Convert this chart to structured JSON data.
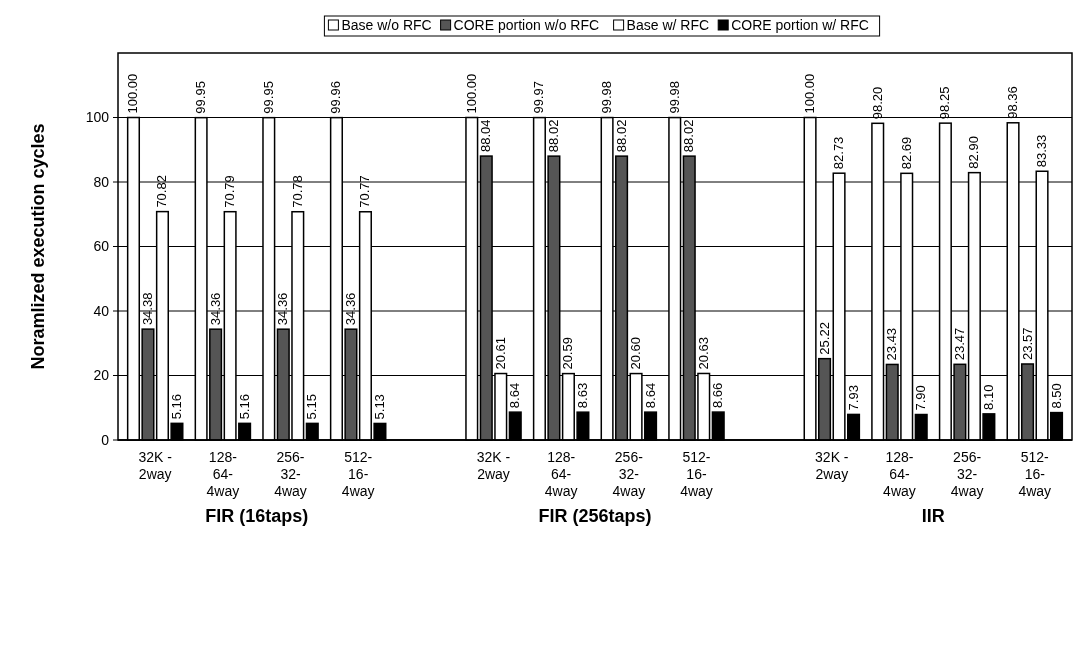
{
  "chart_data": {
    "type": "bar",
    "categories": [
      "32K - 2way",
      "128-64-4way",
      "256-32-4way",
      "512-16-4way",
      null,
      "32K - 2way",
      "128-64-4way",
      "256-32-4way",
      "512-16-4way",
      null,
      "32K - 2way",
      "128-64-4way",
      "256-32-4way",
      "512-16-4way"
    ],
    "series": [
      {
        "name": "Base w/o RFC",
        "color": "#ffffff",
        "values": [
          100,
          99.95,
          99.95,
          99.96,
          null,
          100,
          99.97,
          99.98,
          99.98,
          null,
          100,
          98.2,
          98.25,
          98.36
        ],
        "value_labels": [
          "100.00",
          "99.95",
          "99.95",
          "99.96",
          null,
          "100.00",
          "99.97",
          "99.98",
          "99.98",
          null,
          "100.00",
          "98.20",
          "98.25",
          "98.36"
        ]
      },
      {
        "name": "CORE portion w/o RFC",
        "color": "#555555",
        "values": [
          34.38,
          34.36,
          34.36,
          34.36,
          null,
          88.04,
          88.02,
          88.02,
          88.02,
          null,
          25.22,
          23.43,
          23.47,
          23.57
        ],
        "value_labels": [
          "34.38",
          "34.36",
          "34.36",
          "34.36",
          null,
          "88.04",
          "88.02",
          "88.02",
          "88.02",
          null,
          "25.22",
          "23.43",
          "23.47",
          "23.57"
        ]
      },
      {
        "name": "Base w/ RFC",
        "color": "#ffffff",
        "values": [
          70.82,
          70.79,
          70.78,
          70.77,
          null,
          20.61,
          20.59,
          20.6,
          20.63,
          null,
          82.73,
          82.69,
          82.9,
          83.33
        ],
        "value_labels": [
          "70.82",
          "70.79",
          "70.78",
          "70.77",
          null,
          "20.61",
          "20.59",
          "20.60",
          "20.63",
          null,
          "82.73",
          "82.69",
          "82.90",
          "83.33"
        ]
      },
      {
        "name": "CORE portion w/ RFC",
        "color": "#000000",
        "values": [
          5.16,
          5.16,
          5.15,
          5.13,
          null,
          8.64,
          8.63,
          8.64,
          8.66,
          null,
          7.93,
          7.9,
          8.1,
          8.5
        ],
        "value_labels": [
          "5.16",
          "5.16",
          "5.15",
          "5.13",
          null,
          "8.64",
          "8.63",
          "8.64",
          "8.66",
          null,
          "7.93",
          "7.90",
          "8.10",
          "8.50"
        ]
      }
    ],
    "ylabel": "Noramlized execution cycles",
    "ylim": [
      0,
      120
    ],
    "yticks": [
      0,
      20,
      40,
      60,
      80,
      100
    ],
    "grid": "y",
    "legend": "top",
    "annotations": [
      "FIR (16taps)",
      "FIR (256taps)",
      "IIR"
    ]
  }
}
